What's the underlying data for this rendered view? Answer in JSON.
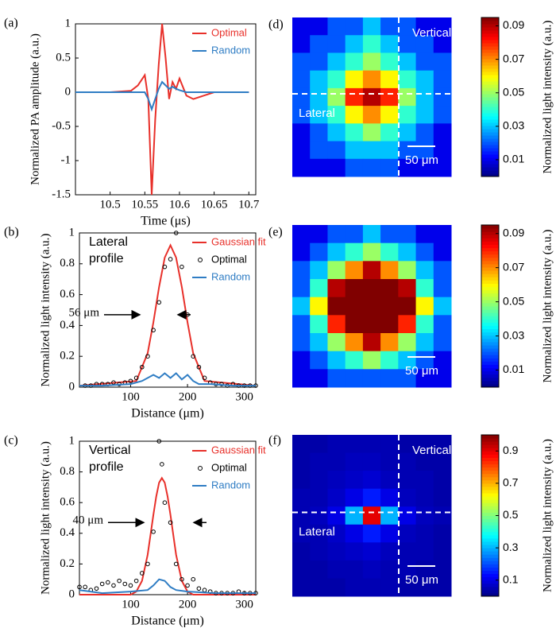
{
  "chart_data": [
    {
      "type": "line",
      "panel_label": "(a)",
      "xlabel": "Time (μs)",
      "ylabel": "Normalized PA amplitude (a.u.)",
      "xlim": [
        10.45,
        10.71
      ],
      "xticks": [
        10.5,
        10.55,
        10.6,
        10.65,
        10.7
      ],
      "ylim": [
        -1.5,
        1
      ],
      "yticks": [
        -1.5,
        -1,
        -0.5,
        0,
        0.5,
        1
      ],
      "series": [
        {
          "name": "Optimal",
          "color": "#e8302a",
          "style": "line",
          "x": [
            10.45,
            10.5,
            10.53,
            10.54,
            10.55,
            10.555,
            10.56,
            10.565,
            10.57,
            10.575,
            10.58,
            10.585,
            10.59,
            10.595,
            10.6,
            10.61,
            10.62,
            10.65,
            10.7
          ],
          "values": [
            0,
            0,
            0.02,
            0.1,
            0.25,
            -0.1,
            -1.5,
            -0.4,
            0.4,
            1,
            0.5,
            -0.1,
            0.15,
            0.05,
            0.2,
            -0.05,
            -0.1,
            0,
            0
          ]
        },
        {
          "name": "Random",
          "color": "#2f7dc4",
          "style": "line",
          "x": [
            10.45,
            10.5,
            10.53,
            10.54,
            10.55,
            10.555,
            10.56,
            10.565,
            10.57,
            10.575,
            10.58,
            10.585,
            10.59,
            10.595,
            10.6,
            10.61,
            10.62,
            10.65,
            10.7
          ],
          "values": [
            0,
            0,
            0,
            0,
            0,
            -0.1,
            -0.25,
            -0.1,
            0.05,
            0.15,
            0.1,
            0.05,
            0.08,
            0.05,
            0.03,
            0,
            0,
            0,
            0
          ]
        }
      ],
      "annotations": []
    },
    {
      "type": "line",
      "panel_label": "(b)",
      "xlabel": "Distance (μm)",
      "ylabel": "Normalized light intensity (a.u.)",
      "xlim": [
        10,
        320
      ],
      "xticks": [
        100,
        200,
        300
      ],
      "ylim": [
        0,
        1
      ],
      "yticks": [
        0,
        0.2,
        0.4,
        0.6,
        0.8,
        1
      ],
      "series": [
        {
          "name": "Gaussian fit",
          "color": "#e8302a",
          "style": "line",
          "x": [
            10,
            110,
            130,
            140,
            150,
            160,
            170,
            180,
            190,
            200,
            210,
            230,
            320
          ],
          "values": [
            0.01,
            0.04,
            0.22,
            0.42,
            0.65,
            0.84,
            0.92,
            0.84,
            0.65,
            0.42,
            0.22,
            0.04,
            0.01
          ]
        },
        {
          "name": "Optimal",
          "color": "#000000",
          "style": "markers",
          "x": [
            20,
            30,
            40,
            50,
            60,
            70,
            80,
            90,
            100,
            110,
            120,
            130,
            140,
            150,
            160,
            170,
            180,
            190,
            200,
            210,
            220,
            230,
            240,
            250,
            260,
            270,
            280,
            290,
            300,
            310,
            320
          ],
          "values": [
            0.01,
            0.01,
            0.02,
            0.02,
            0.02,
            0.03,
            0.02,
            0.03,
            0.04,
            0.06,
            0.13,
            0.2,
            0.37,
            0.55,
            0.78,
            0.83,
            1,
            0.78,
            0.47,
            0.2,
            0.13,
            0.06,
            0.03,
            0.02,
            0.02,
            0.01,
            0.02,
            0.01,
            0.01,
            0.01,
            0.01
          ]
        },
        {
          "name": "Random",
          "color": "#2f7dc4",
          "style": "line",
          "x": [
            10,
            50,
            100,
            120,
            140,
            150,
            160,
            170,
            180,
            190,
            200,
            210,
            220,
            240,
            280,
            320
          ],
          "values": [
            0.01,
            0.01,
            0.02,
            0.04,
            0.08,
            0.06,
            0.09,
            0.06,
            0.09,
            0.05,
            0.08,
            0.04,
            0.02,
            0.02,
            0.01,
            0.01
          ]
        }
      ],
      "annotations": [
        "Lateral",
        "profile",
        "56 μm"
      ]
    },
    {
      "type": "line",
      "panel_label": "(c)",
      "xlabel": "Distance (μm)",
      "ylabel": "Normalized light intensity (a.u.)",
      "xlim": [
        10,
        320
      ],
      "xticks": [
        100,
        200,
        300
      ],
      "ylim": [
        0,
        1
      ],
      "yticks": [
        0,
        0.2,
        0.4,
        0.6,
        0.8,
        1
      ],
      "series": [
        {
          "name": "Gaussian fit",
          "color": "#e8302a",
          "style": "line",
          "x": [
            10,
            100,
            110,
            120,
            130,
            140,
            145,
            150,
            155,
            160,
            165,
            170,
            180,
            190,
            200,
            210,
            320
          ],
          "values": [
            0,
            0,
            0.02,
            0.09,
            0.26,
            0.52,
            0.64,
            0.73,
            0.76,
            0.73,
            0.64,
            0.52,
            0.26,
            0.09,
            0.02,
            0,
            0
          ]
        },
        {
          "name": "Optimal",
          "color": "#000000",
          "style": "markers",
          "x": [
            10,
            20,
            30,
            40,
            50,
            60,
            70,
            80,
            90,
            100,
            110,
            120,
            130,
            140,
            150,
            155,
            160,
            170,
            180,
            190,
            200,
            210,
            220,
            230,
            240,
            250,
            260,
            270,
            280,
            290,
            300,
            310,
            320
          ],
          "values": [
            0.05,
            0.05,
            0.03,
            0.04,
            0.07,
            0.08,
            0.06,
            0.09,
            0.07,
            0.06,
            0.09,
            0.14,
            0.2,
            0.41,
            1,
            0.85,
            0.6,
            0.47,
            0.2,
            0.1,
            0.06,
            0.1,
            0.04,
            0.03,
            0.02,
            0.01,
            0.01,
            0.01,
            0.01,
            0.02,
            0.01,
            0.01,
            0.01
          ]
        },
        {
          "name": "Random",
          "color": "#2f7dc4",
          "style": "line",
          "x": [
            10,
            50,
            100,
            130,
            140,
            150,
            160,
            170,
            180,
            200,
            250,
            320
          ],
          "values": [
            0.03,
            0.01,
            0.02,
            0.03,
            0.06,
            0.1,
            0.09,
            0.05,
            0.03,
            0.02,
            0.01,
            0.01
          ]
        }
      ],
      "annotations": [
        "Vertical",
        "profile",
        "40 μm"
      ]
    },
    {
      "type": "heatmap",
      "panel_label": "(d)",
      "clabel": "Normalized light intensity (a.u.)",
      "clim": [
        0,
        0.095
      ],
      "cticks": [
        0.01,
        0.03,
        0.05,
        0.07,
        0.09
      ],
      "z": [
        [
          0.01,
          0.01,
          0.02,
          0.02,
          0.03,
          0.02,
          0.02,
          0.01,
          0.01
        ],
        [
          0.01,
          0.02,
          0.02,
          0.03,
          0.04,
          0.03,
          0.02,
          0.02,
          0.01
        ],
        [
          0.02,
          0.02,
          0.03,
          0.04,
          0.05,
          0.04,
          0.03,
          0.02,
          0.02
        ],
        [
          0.02,
          0.03,
          0.04,
          0.06,
          0.07,
          0.06,
          0.04,
          0.03,
          0.02
        ],
        [
          0.02,
          0.03,
          0.05,
          0.08,
          0.09,
          0.08,
          0.05,
          0.03,
          0.02
        ],
        [
          0.02,
          0.03,
          0.04,
          0.06,
          0.07,
          0.06,
          0.04,
          0.03,
          0.02
        ],
        [
          0.01,
          0.02,
          0.03,
          0.04,
          0.05,
          0.04,
          0.03,
          0.02,
          0.01
        ],
        [
          0.01,
          0.02,
          0.02,
          0.03,
          0.03,
          0.03,
          0.02,
          0.02,
          0.01
        ],
        [
          0.01,
          0.01,
          0.01,
          0.02,
          0.02,
          0.02,
          0.01,
          0.01,
          0.01
        ]
      ],
      "annotations": [
        "Vertical",
        "Lateral",
        "50 μm"
      ]
    },
    {
      "type": "heatmap",
      "panel_label": "(e)",
      "clabel": "Normalized light intensity (a.u.)",
      "clim": [
        0,
        0.095
      ],
      "cticks": [
        0.01,
        0.03,
        0.05,
        0.07,
        0.09
      ],
      "z": [
        [
          0.01,
          0.01,
          0.02,
          0.02,
          0.03,
          0.02,
          0.02,
          0.01,
          0.01
        ],
        [
          0.01,
          0.02,
          0.03,
          0.04,
          0.05,
          0.04,
          0.03,
          0.02,
          0.01
        ],
        [
          0.02,
          0.03,
          0.05,
          0.07,
          0.09,
          0.07,
          0.05,
          0.03,
          0.02
        ],
        [
          0.02,
          0.04,
          0.09,
          0.1,
          0.1,
          0.1,
          0.09,
          0.04,
          0.02
        ],
        [
          0.03,
          0.06,
          0.1,
          0.1,
          0.1,
          0.1,
          0.1,
          0.06,
          0.03
        ],
        [
          0.02,
          0.04,
          0.08,
          0.1,
          0.1,
          0.1,
          0.08,
          0.04,
          0.02
        ],
        [
          0.02,
          0.03,
          0.05,
          0.07,
          0.09,
          0.07,
          0.05,
          0.03,
          0.02
        ],
        [
          0.01,
          0.02,
          0.03,
          0.04,
          0.05,
          0.04,
          0.03,
          0.02,
          0.01
        ],
        [
          0.01,
          0.01,
          0.02,
          0.02,
          0.02,
          0.02,
          0.02,
          0.01,
          0.01
        ]
      ],
      "annotations": [
        "50 μm"
      ]
    },
    {
      "type": "heatmap",
      "panel_label": "(f)",
      "clabel": "Normalized light intensity (a.u.)",
      "clim": [
        0,
        1
      ],
      "cticks": [
        0.1,
        0.3,
        0.5,
        0.7,
        0.9
      ],
      "z": [
        [
          0.04,
          0.04,
          0.05,
          0.05,
          0.05,
          0.05,
          0.04,
          0.04,
          0.04
        ],
        [
          0.04,
          0.05,
          0.05,
          0.06,
          0.06,
          0.05,
          0.05,
          0.04,
          0.04
        ],
        [
          0.04,
          0.05,
          0.06,
          0.07,
          0.08,
          0.06,
          0.05,
          0.05,
          0.04
        ],
        [
          0.05,
          0.05,
          0.07,
          0.1,
          0.15,
          0.1,
          0.06,
          0.05,
          0.04
        ],
        [
          0.05,
          0.06,
          0.1,
          0.3,
          0.9,
          0.3,
          0.1,
          0.06,
          0.05
        ],
        [
          0.05,
          0.05,
          0.07,
          0.1,
          0.15,
          0.1,
          0.06,
          0.05,
          0.04
        ],
        [
          0.04,
          0.05,
          0.06,
          0.07,
          0.08,
          0.06,
          0.05,
          0.05,
          0.04
        ],
        [
          0.04,
          0.04,
          0.05,
          0.05,
          0.06,
          0.05,
          0.05,
          0.04,
          0.04
        ],
        [
          0.04,
          0.04,
          0.04,
          0.05,
          0.05,
          0.05,
          0.04,
          0.04,
          0.04
        ]
      ],
      "annotations": [
        "Vertical",
        "Lateral",
        "50 μm"
      ]
    }
  ]
}
